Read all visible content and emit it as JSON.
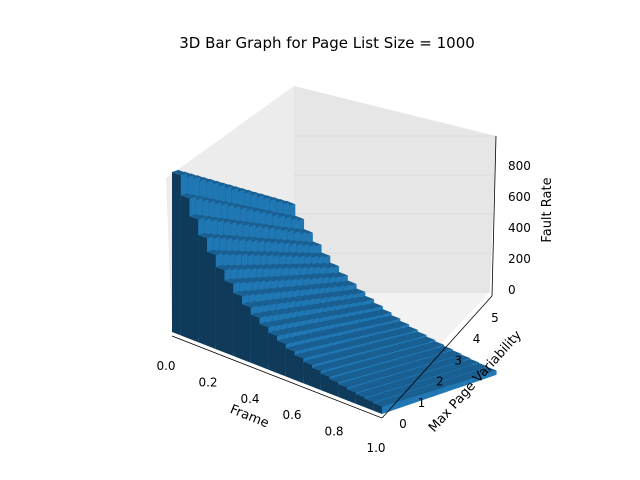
{
  "chart_data": {
    "type": "bar3d",
    "title": "3D Bar Graph for Page List Size = 1000",
    "xlabel": "Frame",
    "ylabel": "Max Page Variability",
    "zlabel": "Fault Rate",
    "x_ticks": [
      "0.0",
      "0.2",
      "0.4",
      "0.6",
      "0.8",
      "1.0"
    ],
    "y_ticks": [
      "0",
      "1",
      "2",
      "3",
      "4",
      "5"
    ],
    "z_ticks": [
      "0",
      "200",
      "400",
      "600",
      "800"
    ],
    "xlim": [
      0,
      1.0
    ],
    "ylim": [
      0,
      5
    ],
    "zlim": [
      0,
      900
    ],
    "bar_color": "#1f77b4",
    "grid": true,
    "series_description": "fault rate decreases as frame fraction increases; surface of bars",
    "max_value": 900,
    "min_value": 0
  }
}
